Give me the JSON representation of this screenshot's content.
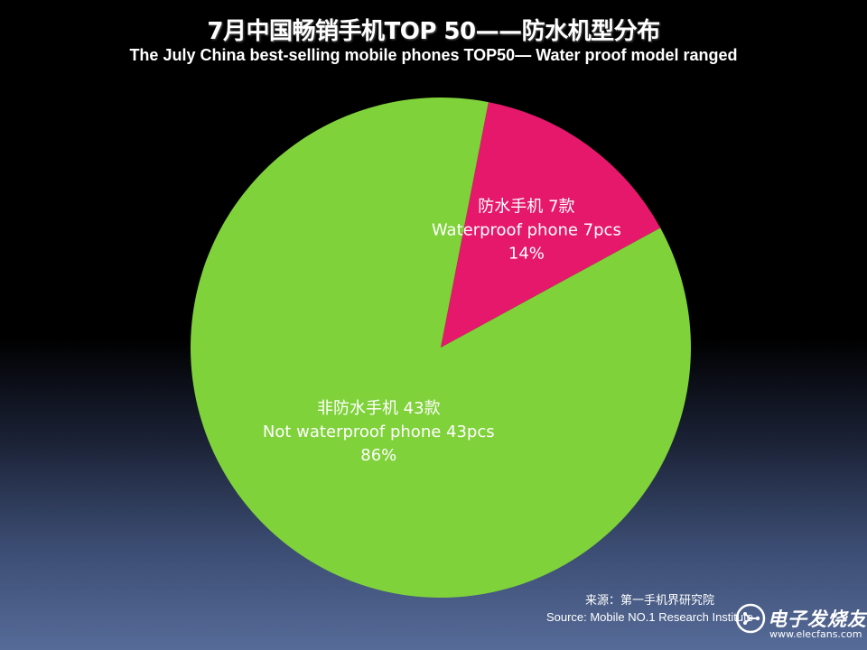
{
  "title": "7月中国畅销手机TOP 50——防水机型分布",
  "subtitle": "The July China best-selling mobile phones TOP50— Water proof model ranged",
  "chart_data": {
    "type": "pie",
    "title": "7月中国畅销手机TOP 50——防水机型分布",
    "subtitle": "The July China best-selling mobile phones TOP50— Water proof model ranged",
    "slices": [
      {
        "label_cn": "防水手机 7款",
        "label_en": "Waterproof phone 7pcs",
        "percent_label": "14%",
        "value": 7,
        "color": "#e5186c"
      },
      {
        "label_cn": "非防水手机 43款",
        "label_en": "Not waterproof phone 43pcs",
        "percent_label": "86%",
        "value": 43,
        "color": "#7fd23a"
      }
    ]
  },
  "source": {
    "line_cn": "来源：第一手机界研究院",
    "line_en": "Source: Mobile NO.1 Research Institute"
  },
  "watermark": {
    "name": "电子发烧友",
    "url": "www.elecfans.com"
  },
  "colors": {
    "waterproof": "#e5186c",
    "not_waterproof": "#7fd23a",
    "background_top": "#000000",
    "background_bottom": "#566b98"
  }
}
